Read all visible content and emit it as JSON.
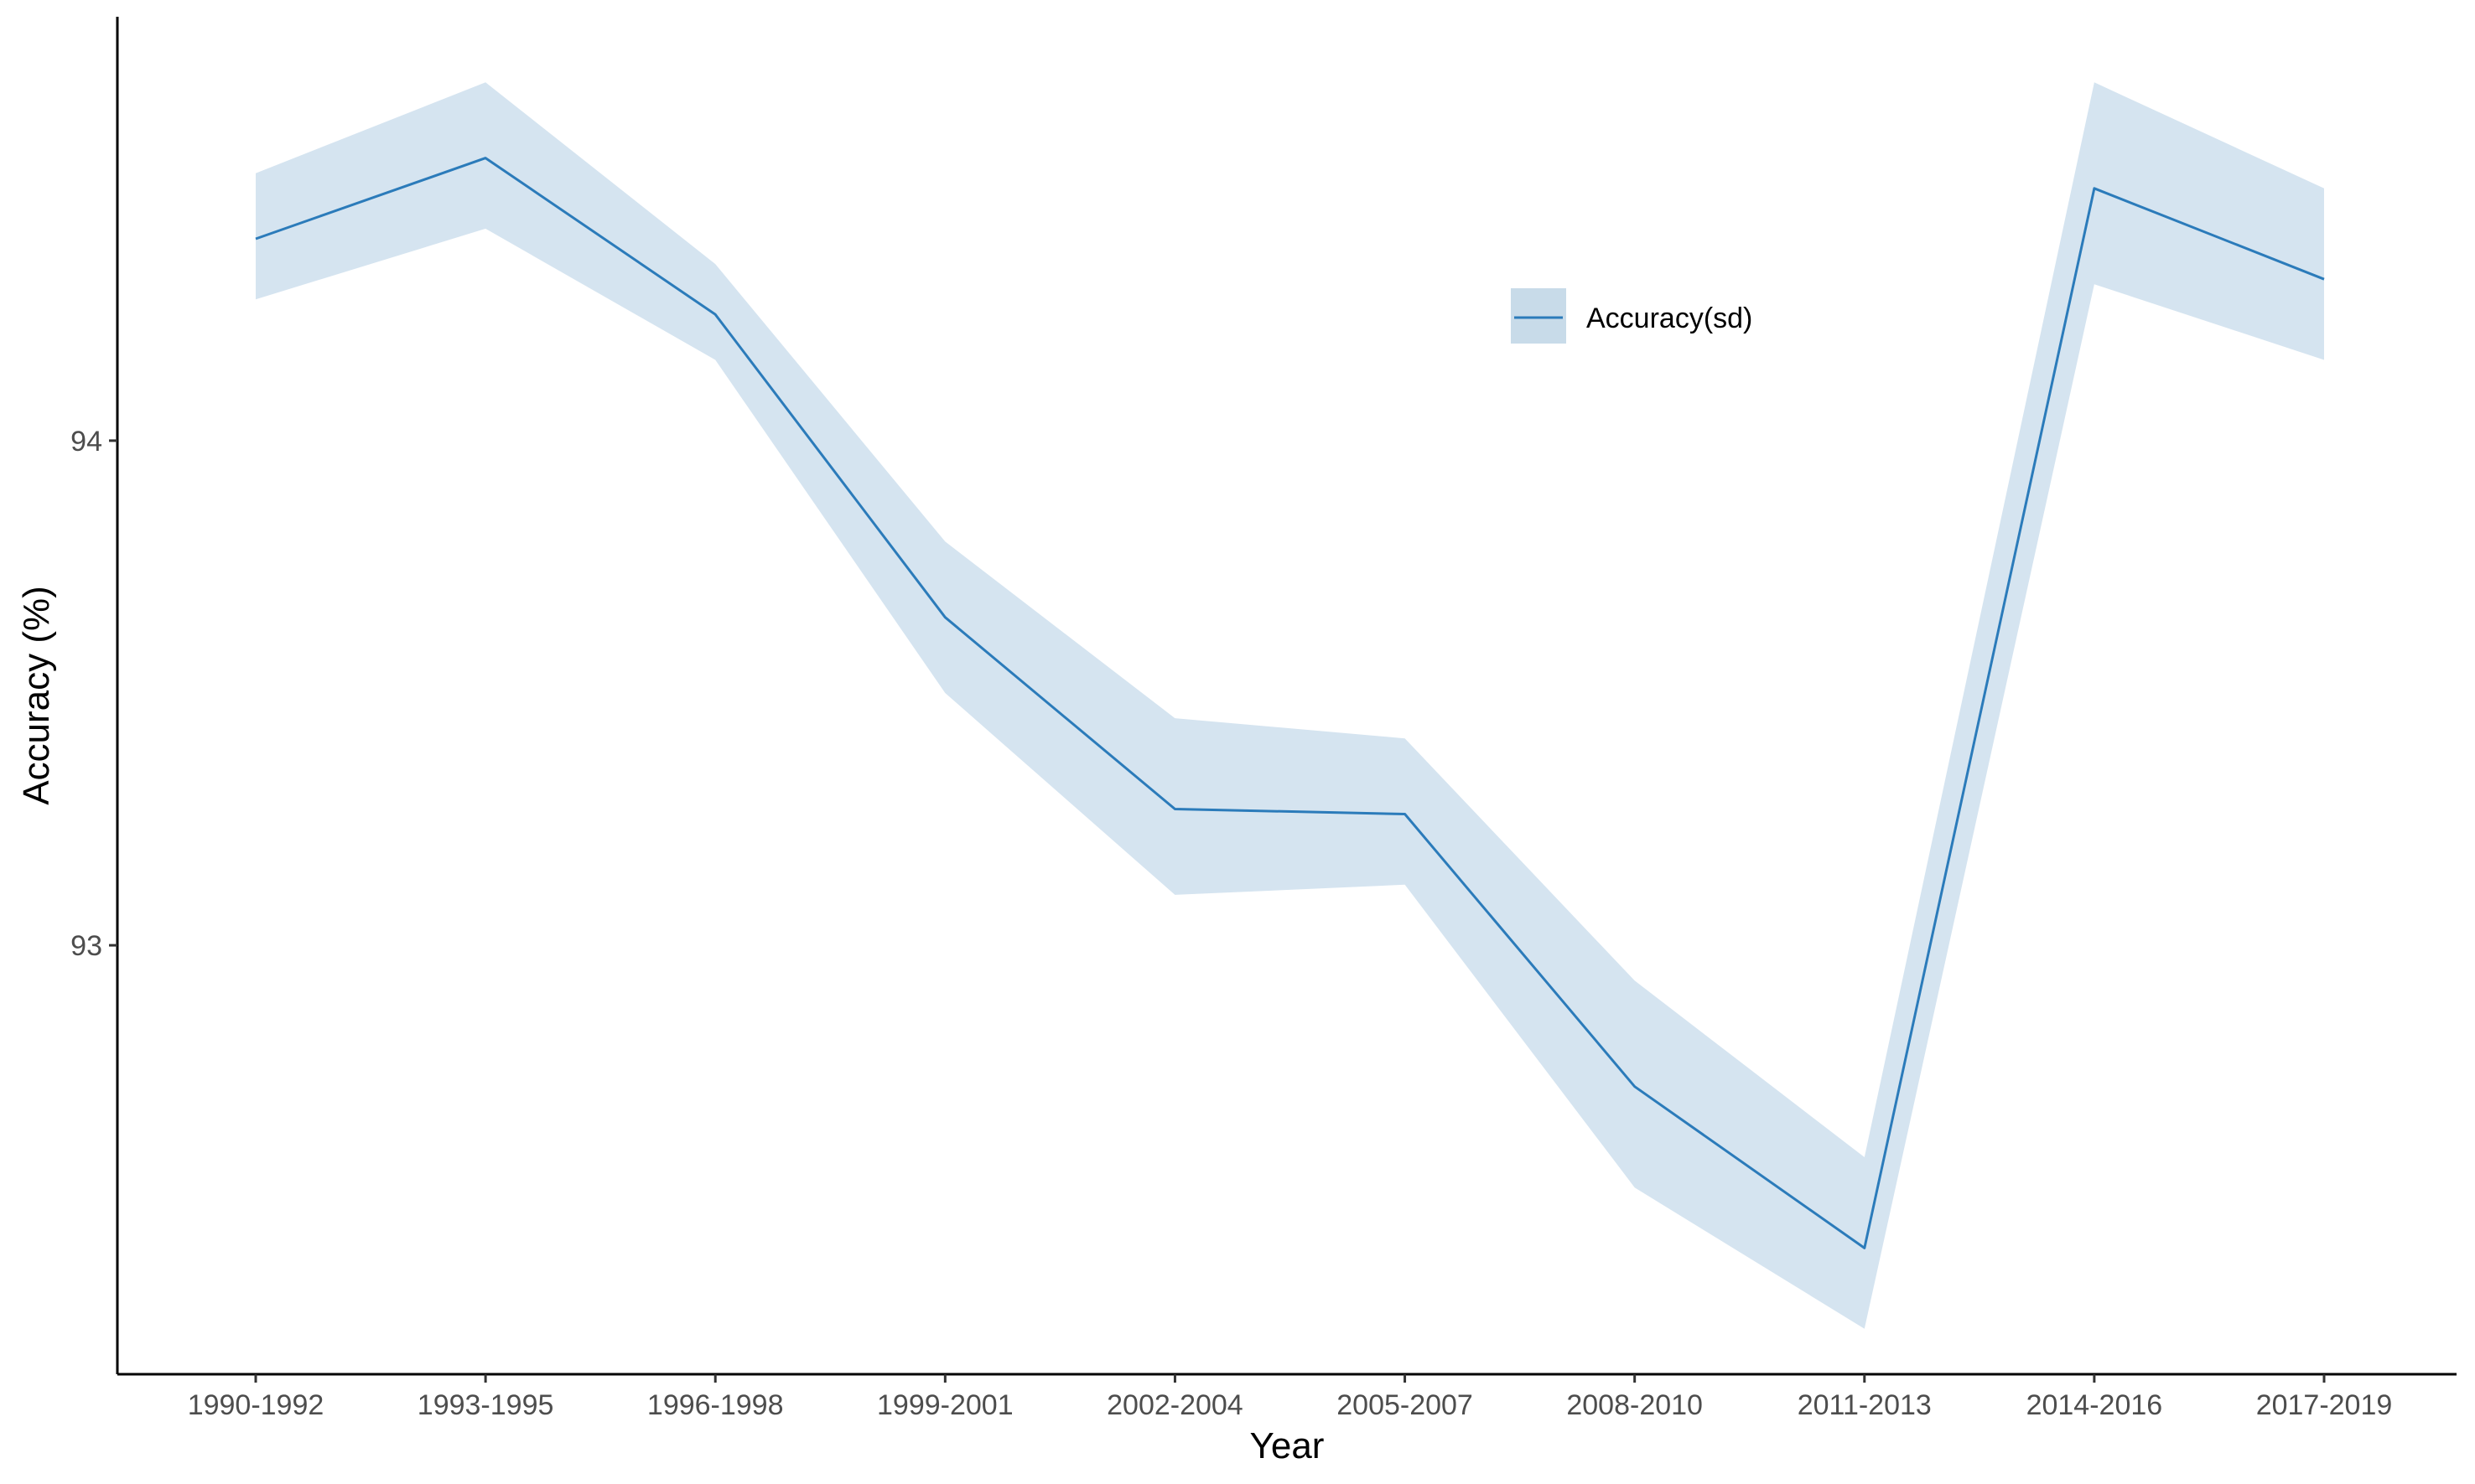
{
  "chart_data": {
    "type": "line",
    "title": "",
    "xlabel": "Year",
    "ylabel": "Accuracy (%)",
    "categories": [
      "1990-1992",
      "1993-1995",
      "1996-1998",
      "1999-2001",
      "2002-2004",
      "2005-2007",
      "2008-2010",
      "2011-2013",
      "2014-2016",
      "2017-2019"
    ],
    "series": [
      {
        "name": "Accuracy(sd)",
        "values": [
          94.4,
          94.56,
          94.25,
          93.65,
          93.27,
          93.26,
          92.72,
          92.4,
          94.5,
          94.32
        ],
        "lower": [
          94.28,
          94.42,
          94.16,
          93.5,
          93.1,
          93.12,
          92.52,
          92.24,
          94.31,
          94.16
        ],
        "upper": [
          94.53,
          94.71,
          94.35,
          93.8,
          93.45,
          93.41,
          92.93,
          92.58,
          94.71,
          94.5
        ],
        "color": "#2b7bba",
        "band_color": "#d5e4f0"
      }
    ],
    "yticks": [
      93,
      94
    ],
    "ylim": [
      92.15,
      94.84
    ],
    "grid": false,
    "legend": {
      "position": "top-center",
      "entries": [
        "Accuracy(sd)"
      ]
    }
  }
}
